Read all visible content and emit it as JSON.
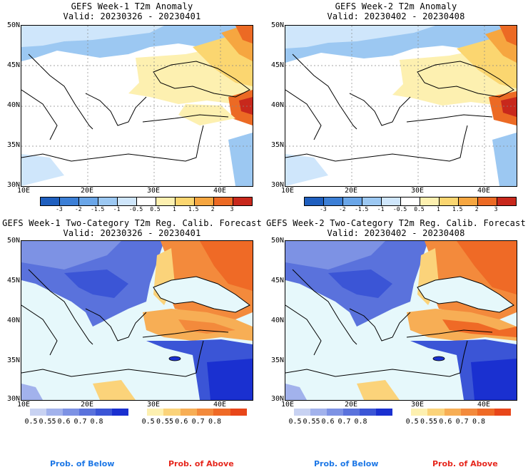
{
  "panels": [
    {
      "id": "p1",
      "title": "GEFS Week-1 T2m Anomaly",
      "subtitle": "Valid: 20230326 - 20230401",
      "kind": "anomaly"
    },
    {
      "id": "p2",
      "title": "GEFS Week-2 T2m Anomaly",
      "subtitle": "Valid: 20230402 - 20230408",
      "kind": "anomaly"
    },
    {
      "id": "p3",
      "title": "GEFS Week-1 Two-Category T2m Reg. Calib. Forecast",
      "subtitle": "Valid: 20230326 - 20230401",
      "kind": "prob"
    },
    {
      "id": "p4",
      "title": "GEFS Week-2 Two-Category T2m Reg. Calib. Forecast",
      "subtitle": "Valid: 20230402 - 20230408",
      "kind": "prob"
    }
  ],
  "map": {
    "lat_labels": [
      "50N",
      "45N",
      "40N",
      "35N",
      "30N"
    ],
    "lon_labels": [
      "10E",
      "20E",
      "30E",
      "40E"
    ]
  },
  "anomaly_colorbar": {
    "labels": [
      "-3",
      "-2",
      "-1.5",
      "-1",
      "-0.5",
      "0.5",
      "1",
      "1.5",
      "2",
      "3"
    ],
    "colors": [
      "#1f5fbf",
      "#3c7fd6",
      "#6aa6e8",
      "#9cc8f2",
      "#cfe6fb",
      "#ffffff",
      "#fdf0b0",
      "#fbd670",
      "#f6a640",
      "#ec6a24",
      "#c8281c"
    ]
  },
  "prob_below_colorbar": {
    "labels": [
      "0.5",
      "0.55",
      "0.6",
      "0.7",
      "0.8"
    ],
    "colors": [
      "#c8d2f2",
      "#a2b2ec",
      "#7d92e4",
      "#5a72dc",
      "#3b55d6",
      "#1a30d0"
    ]
  },
  "prob_above_colorbar": {
    "labels": [
      "0.5",
      "0.55",
      "0.6",
      "0.7",
      "0.8"
    ],
    "colors": [
      "#fdf0b0",
      "#fbd37a",
      "#f7ae55",
      "#f38a3c",
      "#ef6a26",
      "#e8461a"
    ]
  },
  "legend": {
    "below_label": "Prob. of Below",
    "above_label": "Prob. of Above",
    "below_color": "#1e78e6",
    "above_color": "#e6281e"
  },
  "colors": {
    "sea_light": "#e6f8fb",
    "neutral": "#ffffff"
  }
}
